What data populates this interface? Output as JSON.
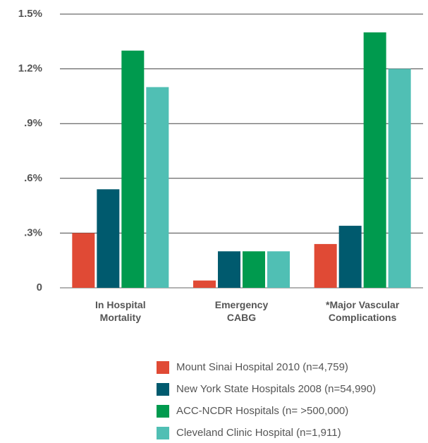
{
  "chart_data": {
    "type": "bar",
    "categories": [
      "In Hospital\nMortality",
      "Emergency\nCABG",
      "*Major Vascular\nComplications"
    ],
    "series": [
      {
        "name": "Mount Sinai Hospital 2010 (n=4,759)",
        "color": "#e04a35",
        "values": [
          0.3,
          0.04,
          0.24
        ]
      },
      {
        "name": "New York State Hospitals 2008 (n=54,990)",
        "color": "#005a6e",
        "values": [
          0.54,
          0.2,
          0.34
        ]
      },
      {
        "name": "ACC-NCDR Hospitals (n= >500,000)",
        "color": "#009a4e",
        "values": [
          1.3,
          0.2,
          1.4
        ]
      },
      {
        "name": "Cleveland Clinic Hospital (n=1,911)",
        "color": "#50bfb4",
        "values": [
          1.1,
          0.2,
          1.2
        ]
      }
    ],
    "ylim": [
      0,
      1.5
    ],
    "yticks": [
      0,
      {
        "value": 0.3,
        "label": ".3%"
      },
      {
        "value": 0.6,
        "label": ".6%"
      },
      {
        "value": 0.9,
        "label": ".9%"
      },
      {
        "value": 1.2,
        "label": "1.2%"
      },
      {
        "value": 1.5,
        "label": "1.5%"
      }
    ],
    "grid": true
  }
}
